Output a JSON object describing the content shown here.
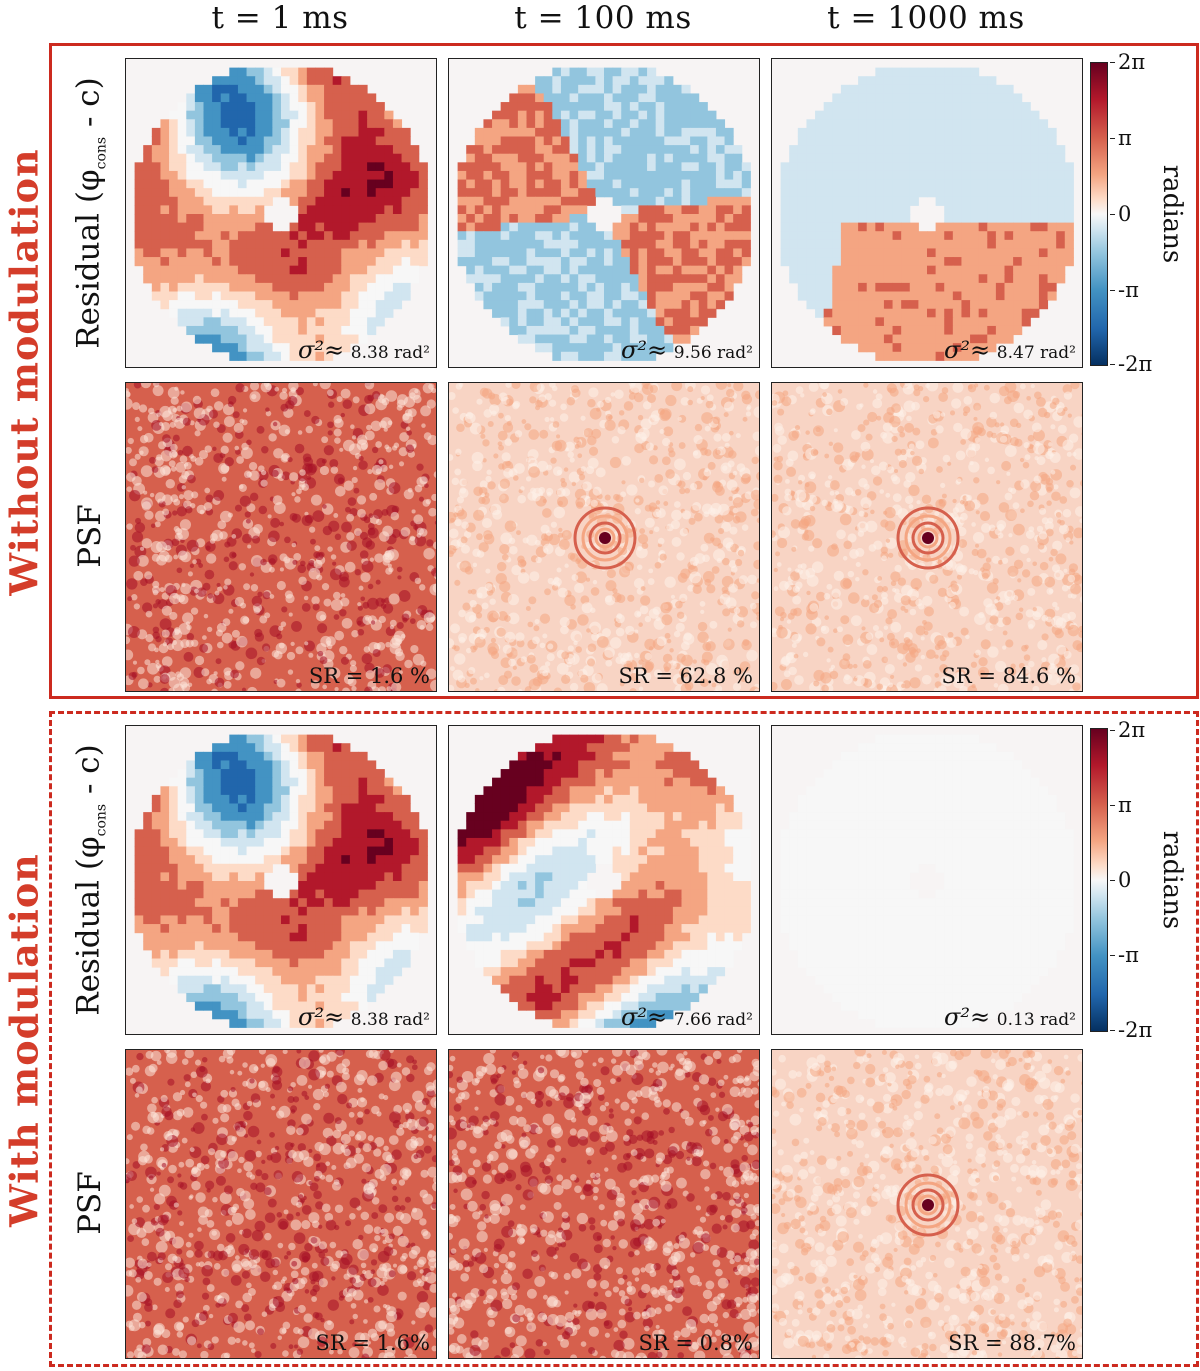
{
  "columns": [
    "t = 1 ms",
    "t = 100 ms",
    "t = 1000 ms"
  ],
  "sections": [
    {
      "label": "Without modulation",
      "residual_row_label": "Residual (φ",
      "residual_row_sub": "cons",
      "residual_row_tail": " - c)",
      "psf_row_label": "PSF",
      "variances": [
        {
          "symbol": "σ²≈",
          "value": "8.38 rad²"
        },
        {
          "symbol": "σ²≈",
          "value": "9.56 rad²"
        },
        {
          "symbol": "σ²≈",
          "value": "8.47 rad²"
        }
      ],
      "strehl": [
        "SR = 1.6 %",
        "SR = 62.8 %",
        "SR = 84.6 %"
      ]
    },
    {
      "label": "With modulation",
      "residual_row_label": "Residual (φ",
      "residual_row_sub": "cons",
      "residual_row_tail": " - c)",
      "psf_row_label": "PSF",
      "variances": [
        {
          "symbol": "σ²≈",
          "value": "8.38 rad²"
        },
        {
          "symbol": "σ²≈",
          "value": "7.66 rad²"
        },
        {
          "symbol": "σ²≈",
          "value": "0.13 rad²"
        }
      ],
      "strehl": [
        "SR = 1.6%",
        "SR = 0.8%",
        "SR = 88.7%"
      ]
    }
  ],
  "colorbar": {
    "label": "radians",
    "ticks": [
      "2π",
      "π",
      "0",
      "-π",
      "-2π"
    ],
    "colors": [
      "#67001f",
      "#b2182b",
      "#d6604d",
      "#f4a582",
      "#fddbc7",
      "#f7f7f7",
      "#d1e5f0",
      "#92c5de",
      "#4393c3",
      "#2166ac",
      "#053061"
    ]
  }
}
